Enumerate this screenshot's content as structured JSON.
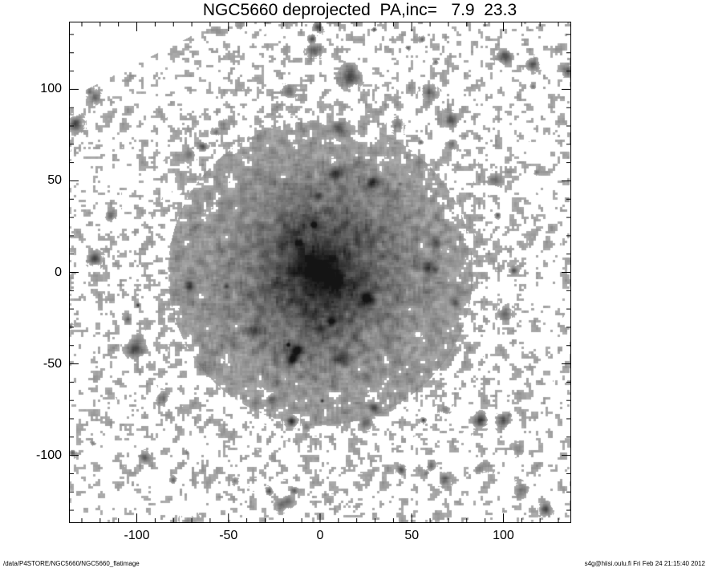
{
  "chart_data": {
    "type": "heatmap",
    "title": "NGC5660 deprojected  PA,inc=   7.9  23.3",
    "xlabel": "",
    "ylabel": "",
    "xlim": [
      -137,
      137
    ],
    "ylim": [
      -137,
      137
    ],
    "colormap": "grayscale",
    "x_ticks": [
      -100,
      -50,
      0,
      50,
      100
    ],
    "y_ticks": [
      100,
      50,
      0,
      -50,
      -100
    ],
    "x_tick_labels": [
      "-100",
      "-50",
      "0",
      "50",
      "100"
    ],
    "y_tick_labels": [
      "100",
      "50",
      "0",
      "-50",
      "-100"
    ],
    "minor_tick_step": 10,
    "grid": false
  },
  "footer": {
    "path": "/data/P4STORE/NGC5660/NGC5660_flatimage",
    "user_date": "s4g@hiisi.oulu.fi  Fri Feb 24 21:15:40 2012"
  }
}
